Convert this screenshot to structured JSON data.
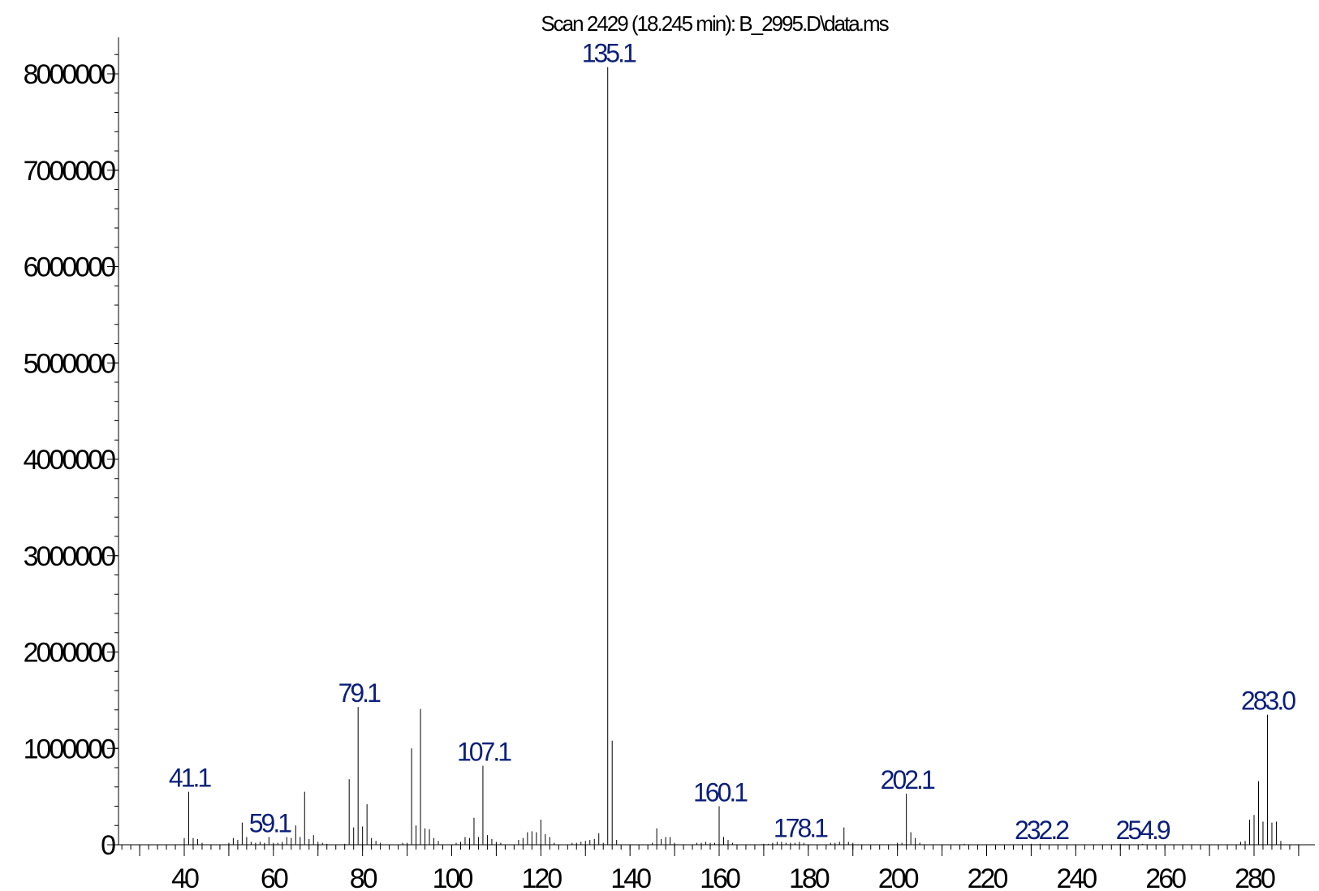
{
  "chart_data": {
    "type": "bar",
    "title": "Scan 2429 (18.245 min): B_2995.D\\data.ms",
    "xlabel": "",
    "ylabel": "",
    "xlim": [
      23,
      290
    ],
    "ylim": [
      0,
      8400000
    ],
    "x_ticks": [
      40,
      60,
      80,
      100,
      120,
      140,
      160,
      180,
      200,
      220,
      240,
      260,
      280
    ],
    "y_ticks": [
      0,
      1000000,
      2000000,
      3000000,
      4000000,
      5000000,
      6000000,
      7000000,
      8000000
    ],
    "y_tick_labels": [
      "0",
      "1000000",
      "2000000",
      "3000000",
      "4000000",
      "5000000",
      "6000000",
      "7000000",
      "8000000"
    ],
    "x_tick_labels": [
      "40",
      "60",
      "80",
      "100",
      "120",
      "140",
      "160",
      "180",
      "200",
      "220",
      "240",
      "260",
      "280"
    ],
    "peak_labels": [
      {
        "x": 41.1,
        "y": 550000,
        "text": "41.1"
      },
      {
        "x": 59.1,
        "y": 80000,
        "text": "59.1"
      },
      {
        "x": 79.1,
        "y": 1430000,
        "text": "79.1"
      },
      {
        "x": 107.1,
        "y": 820000,
        "text": "107.1"
      },
      {
        "x": 135.1,
        "y": 8070000,
        "text": "135.1"
      },
      {
        "x": 160.1,
        "y": 400000,
        "text": "160.1"
      },
      {
        "x": 178.1,
        "y": 30000,
        "text": "178.1"
      },
      {
        "x": 202.1,
        "y": 530000,
        "text": "202.1"
      },
      {
        "x": 232.2,
        "y": 10000,
        "text": "232.2"
      },
      {
        "x": 254.9,
        "y": 10000,
        "text": "254.9"
      },
      {
        "x": 283.0,
        "y": 1350000,
        "text": "283.0"
      }
    ],
    "series": [
      {
        "x": [
          40,
          41,
          42,
          43,
          44,
          50,
          51,
          52,
          53,
          54,
          55,
          56,
          57,
          58,
          59,
          60,
          61,
          62,
          63,
          64,
          65,
          66,
          67,
          68,
          69,
          70,
          71,
          72,
          76,
          77,
          78,
          79,
          80,
          81,
          82,
          83,
          84,
          89,
          90,
          91,
          92,
          93,
          94,
          95,
          96,
          97,
          101,
          102,
          103,
          104,
          105,
          106,
          107,
          108,
          109,
          110,
          111,
          115,
          116,
          117,
          118,
          119,
          120,
          121,
          122,
          123,
          127,
          128,
          129,
          130,
          131,
          132,
          133,
          134,
          135,
          136,
          137,
          145,
          146,
          147,
          148,
          149,
          150,
          155,
          156,
          157,
          158,
          159,
          160,
          161,
          162,
          163,
          170,
          171,
          172,
          173,
          174,
          175,
          176,
          177,
          178,
          179,
          185,
          186,
          187,
          188,
          189,
          190,
          200,
          201,
          202,
          203,
          204,
          205,
          215,
          230,
          232,
          250,
          255,
          277,
          278,
          279,
          280,
          281,
          282,
          283,
          284,
          285,
          286
        ],
        "y": [
          70000,
          550000,
          70000,
          60000,
          20000,
          20000,
          70000,
          50000,
          230000,
          80000,
          30000,
          20000,
          30000,
          20000,
          80000,
          20000,
          20000,
          30000,
          80000,
          70000,
          200000,
          80000,
          550000,
          60000,
          100000,
          30000,
          20000,
          10000,
          10000,
          680000,
          180000,
          1430000,
          190000,
          420000,
          70000,
          40000,
          20000,
          20000,
          20000,
          1000000,
          200000,
          1410000,
          170000,
          160000,
          70000,
          40000,
          20000,
          30000,
          80000,
          70000,
          280000,
          80000,
          820000,
          100000,
          60000,
          30000,
          20000,
          50000,
          70000,
          130000,
          140000,
          130000,
          260000,
          110000,
          80000,
          20000,
          20000,
          20000,
          30000,
          40000,
          50000,
          60000,
          120000,
          20000,
          8070000,
          1080000,
          50000,
          20000,
          170000,
          60000,
          80000,
          80000,
          20000,
          20000,
          20000,
          30000,
          20000,
          20000,
          400000,
          80000,
          50000,
          20000,
          10000,
          10000,
          20000,
          30000,
          30000,
          20000,
          20000,
          20000,
          30000,
          20000,
          20000,
          20000,
          30000,
          180000,
          30000,
          20000,
          20000,
          20000,
          530000,
          130000,
          70000,
          20000,
          10000,
          10000,
          10000,
          10000,
          10000,
          30000,
          40000,
          260000,
          310000,
          660000,
          240000,
          1350000,
          230000,
          240000,
          40000
        ]
      }
    ]
  }
}
